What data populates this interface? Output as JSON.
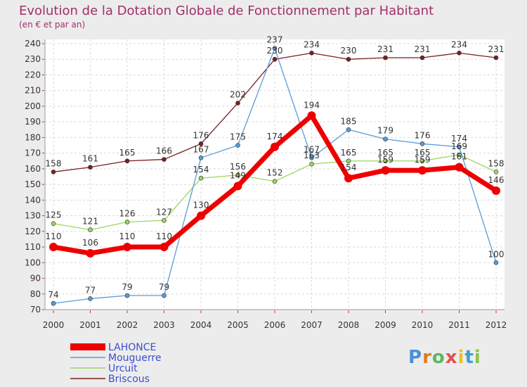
{
  "chart_data": {
    "type": "line",
    "title": "Evolution de la Dotation Globale de Fonctionnement par Habitant",
    "subtitle": "(en € et par an)",
    "x": [
      "2000",
      "2001",
      "2002",
      "2003",
      "2004",
      "2005",
      "2006",
      "2007",
      "2008",
      "2009",
      "2010",
      "2011",
      "2012"
    ],
    "ylim": [
      70,
      240
    ],
    "yticks": [
      70,
      80,
      90,
      100,
      110,
      120,
      130,
      140,
      150,
      160,
      170,
      180,
      190,
      200,
      210,
      220,
      230,
      240
    ],
    "grid": true,
    "legend_position": "bottom-left",
    "series": [
      {
        "name": "Briscous",
        "color": "#7a1f1f",
        "width": 1.3,
        "marker": 3,
        "values": [
          158,
          161,
          165,
          166,
          176,
          202,
          230,
          234,
          230,
          231,
          231,
          234,
          231
        ]
      },
      {
        "name": "Urcuit",
        "color": "#9ad55f",
        "width": 1.3,
        "marker": 3,
        "values": [
          125,
          121,
          126,
          127,
          154,
          156,
          152,
          163,
          165,
          165,
          165,
          169,
          158
        ]
      },
      {
        "name": "Mouguerre",
        "color": "#5b9bd5",
        "width": 1.3,
        "marker": 3,
        "values": [
          74,
          77,
          79,
          79,
          167,
          175,
          237,
          167,
          185,
          179,
          176,
          174,
          100
        ]
      },
      {
        "name": "LAHONCE",
        "color": "#ee0000",
        "width": 7,
        "marker": 6,
        "values": [
          110,
          106,
          110,
          110,
          130,
          149,
          174,
          194,
          154,
          159,
          159,
          161,
          146
        ]
      }
    ],
    "legend_order": [
      "LAHONCE",
      "Mouguerre",
      "Urcuit",
      "Briscous"
    ]
  },
  "logo": {
    "text": "Proxiti",
    "letters": [
      "P",
      "r",
      "o",
      "x",
      "i",
      "t",
      "i"
    ],
    "colors": [
      "#4a90d9",
      "#e07b20",
      "#5cb85c",
      "#e05050",
      "#f0c020",
      "#3aa0d0",
      "#8bc34a"
    ]
  }
}
